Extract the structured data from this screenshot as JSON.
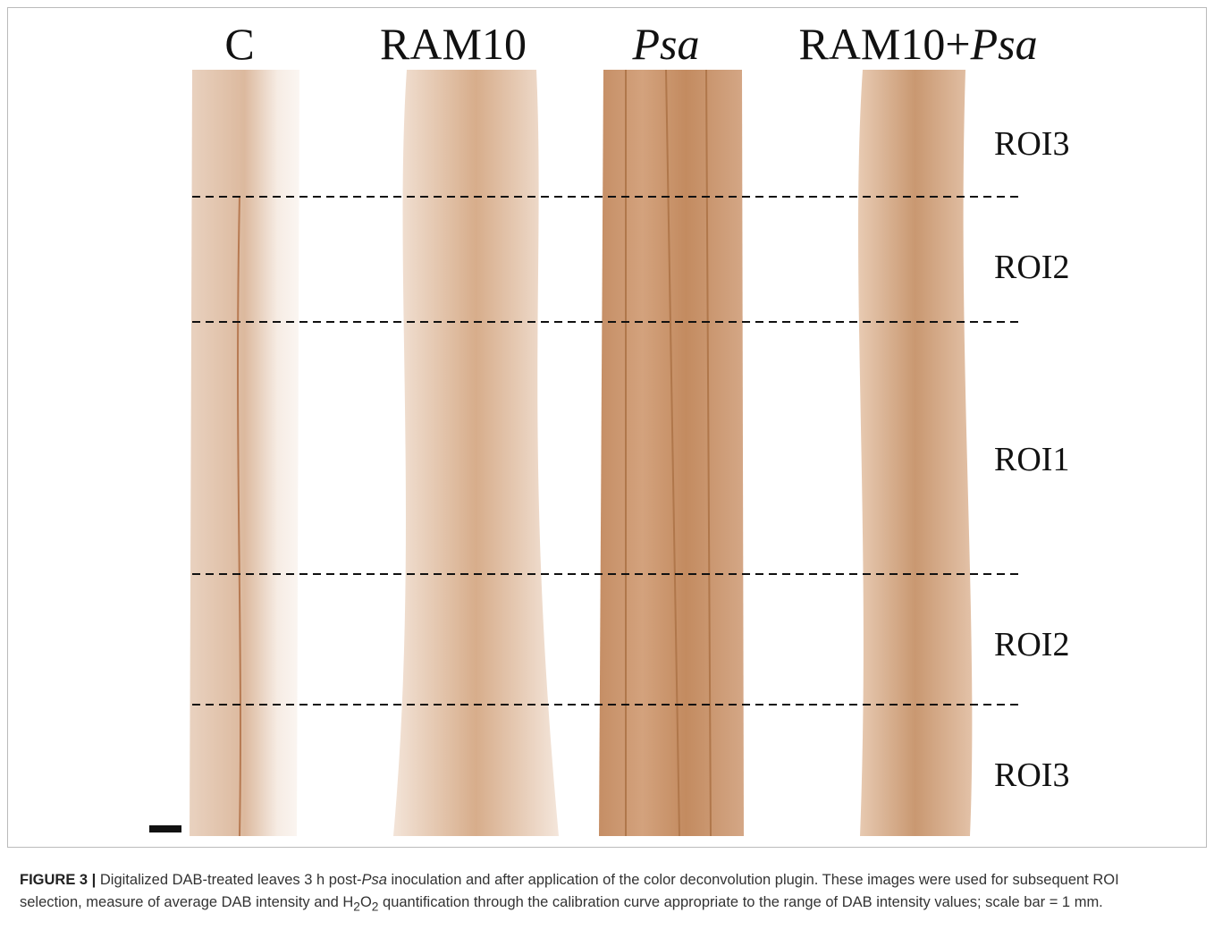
{
  "figure": {
    "columns": [
      {
        "parts": [
          "C"
        ]
      },
      {
        "parts": [
          "RAM10"
        ]
      },
      {
        "parts": [
          "Psa"
        ]
      },
      {
        "parts": [
          "RAM10+",
          "Psa"
        ]
      }
    ],
    "regions": [
      "ROI3",
      "ROI2",
      "ROI1",
      "ROI2",
      "ROI3"
    ],
    "caption": {
      "label": "FIGURE 3 |",
      "parts": [
        " Digitalized DAB-treated leaves 3 h post-",
        "Psa",
        " inoculation and after application of the color deconvolution plugin. These images were used for subsequent ROI selection, measure of average DAB intensity and H",
        "2",
        "O",
        "2",
        " quantification through the calibration curve appropriate to the range of DAB intensity values; scale bar = 1 mm."
      ]
    }
  }
}
